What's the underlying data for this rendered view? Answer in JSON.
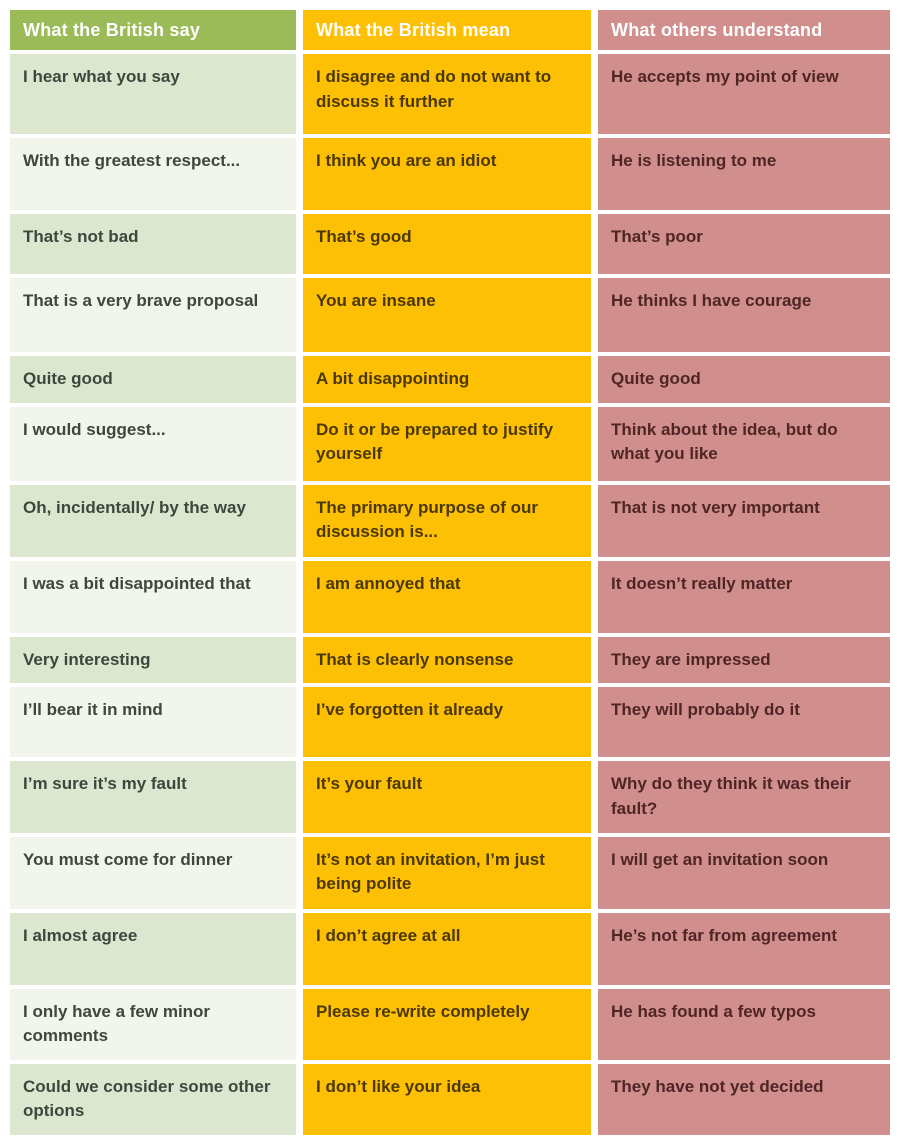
{
  "colors": {
    "header_green": "#9bbb59",
    "header_amber": "#fdc004",
    "header_rose": "#d08f8c",
    "cell_pale_green": "#dde7d0",
    "cell_off_white": "#f2f5ec",
    "header_text": "#ffffff",
    "say_text": "#3e463e",
    "mean_text": "#4a3800",
    "understand_text": "#4f2525"
  },
  "chart_data": {
    "type": "table",
    "title": "",
    "columns": [
      "What the British say",
      "What the British mean",
      "What others understand"
    ],
    "rows": [
      {
        "say": "I hear what you say",
        "mean": "I disagree and do not want to discuss it further",
        "understand": "He accepts my point of view"
      },
      {
        "say": "With the greatest respect...",
        "mean": "I think you are an idiot",
        "understand": "He is listening to me"
      },
      {
        "say": "That’s not bad",
        "mean": "That’s good",
        "understand": "That’s poor"
      },
      {
        "say": "That is a very brave proposal",
        "mean": "You are insane",
        "understand": "He thinks I have courage"
      },
      {
        "say": "Quite good",
        "mean": "A bit disappointing",
        "understand": "Quite good"
      },
      {
        "say": "I would suggest...",
        "mean": "Do it or be prepared to justify yourself",
        "understand": "Think about the idea, but do what you like"
      },
      {
        "say": "Oh, incidentally/ by the way",
        "mean": "The primary purpose of our discussion is...",
        "understand": "That is not very important"
      },
      {
        "say": "I was a bit disappointed that",
        "mean": "I am annoyed that",
        "understand": "It doesn’t really matter"
      },
      {
        "say": "Very interesting",
        "mean": "That is clearly nonsense",
        "understand": "They are impressed"
      },
      {
        "say": "I’ll bear it in mind",
        "mean": "I’ve forgotten it already",
        "understand": "They will probably do it"
      },
      {
        "say": "I’m sure it’s my fault",
        "mean": "It’s your fault",
        "understand": "Why do they think it was their fault?"
      },
      {
        "say": "You must come for dinner",
        "mean": "It’s not an invitation, I’m just being polite",
        "understand": "I will get an invitation soon"
      },
      {
        "say": "I almost agree",
        "mean": "I don’t agree at all",
        "understand": "He’s not far from agreement"
      },
      {
        "say": "I only have a few minor comments",
        "mean": "Please re-write completely",
        "understand": "He has found a few typos"
      },
      {
        "say": "Could we consider some other options",
        "mean": "I don’t like your idea",
        "understand": "They have not yet decided"
      }
    ]
  }
}
